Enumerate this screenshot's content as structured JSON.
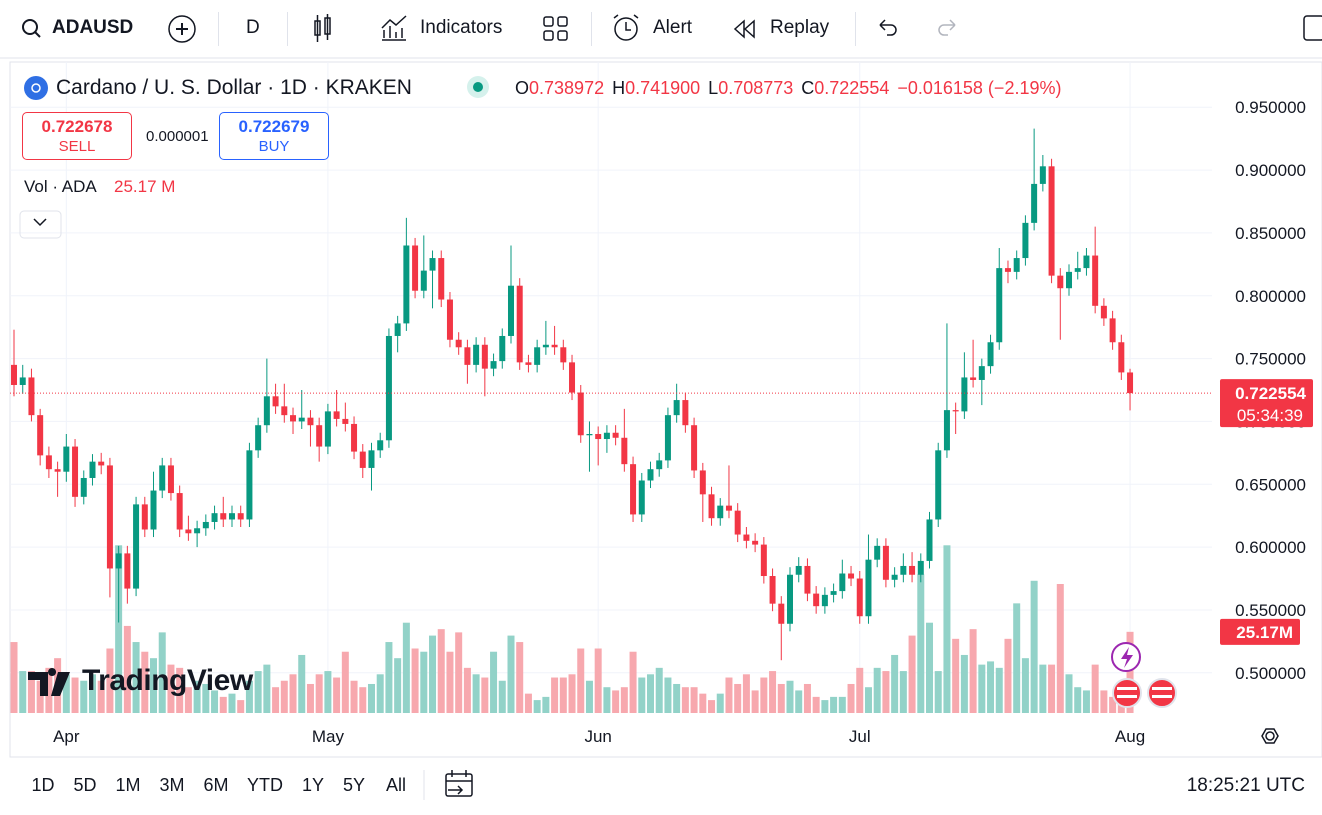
{
  "toolbar": {
    "symbol": "ADAUSD",
    "interval": "D",
    "indicators": "Indicators",
    "alert": "Alert",
    "replay": "Replay"
  },
  "legend": {
    "title": "Cardano / U. S. Dollar · 1D · KRAKEN",
    "ohlc": [
      {
        "key": "O",
        "value": "0.738972"
      },
      {
        "key": "H",
        "value": "0.741900"
      },
      {
        "key": "L",
        "value": "0.708773"
      },
      {
        "key": "C",
        "value": "0.722554"
      }
    ],
    "change": "−0.016158 (−2.19%)",
    "sell": {
      "price": "0.722678",
      "label": "SELL"
    },
    "spread": "0.000001",
    "buy": {
      "price": "0.722679",
      "label": "BUY"
    },
    "volume_name": "Vol · ADA",
    "volume_value": "25.17 M"
  },
  "chart_data": {
    "type": "candlestick",
    "up_color": "#089981",
    "down_color": "#f23645",
    "volume_up_color": "#92d2c8",
    "volume_down_color": "#f7a8ae",
    "grid": true,
    "open": [
      0.745,
      0.729,
      0.735,
      0.705,
      0.673,
      0.662,
      0.66,
      0.68,
      0.64,
      0.655,
      0.668,
      0.665,
      0.583,
      0.595,
      0.567,
      0.634,
      0.614,
      0.645,
      0.665,
      0.643,
      0.614,
      0.611,
      0.615,
      0.62,
      0.627,
      0.622,
      0.627,
      0.622,
      0.677,
      0.697,
      0.72,
      0.712,
      0.705,
      0.7,
      0.703,
      0.697,
      0.68,
      0.708,
      0.702,
      0.698,
      0.676,
      0.663,
      0.677,
      0.685,
      0.768,
      0.778,
      0.84,
      0.804,
      0.82,
      0.83,
      0.797,
      0.765,
      0.759,
      0.745,
      0.761,
      0.742,
      0.748,
      0.768,
      0.808,
      0.747,
      0.745,
      0.759,
      0.761,
      0.759,
      0.747,
      0.723,
      0.689,
      0.69,
      0.686,
      0.691,
      0.687,
      0.666,
      0.626,
      0.653,
      0.662,
      0.669,
      0.705,
      0.717,
      0.697,
      0.661,
      0.642,
      0.623,
      0.633,
      0.629,
      0.61,
      0.605,
      0.602,
      0.577,
      0.555,
      0.539,
      0.578,
      0.585,
      0.563,
      0.553,
      0.562,
      0.565,
      0.579,
      0.575,
      0.545,
      0.59,
      0.601,
      0.574,
      0.578,
      0.585,
      0.578,
      0.589,
      0.622,
      0.677,
      0.709,
      0.708,
      0.735,
      0.733,
      0.744,
      0.763,
      0.822,
      0.819,
      0.83,
      0.858,
      0.889,
      0.903,
      0.816,
      0.806,
      0.819,
      0.822,
      0.832,
      0.792,
      0.782,
      0.763,
      0.738972
    ],
    "high": [
      0.773,
      0.745,
      0.742,
      0.71,
      0.68,
      0.668,
      0.69,
      0.686,
      0.661,
      0.674,
      0.675,
      0.671,
      0.601,
      0.601,
      0.64,
      0.64,
      0.66,
      0.671,
      0.671,
      0.649,
      0.625,
      0.621,
      0.626,
      0.633,
      0.64,
      0.633,
      0.633,
      0.683,
      0.703,
      0.75,
      0.73,
      0.73,
      0.711,
      0.725,
      0.709,
      0.703,
      0.714,
      0.725,
      0.715,
      0.704,
      0.682,
      0.683,
      0.691,
      0.774,
      0.784,
      0.862,
      0.846,
      0.848,
      0.836,
      0.836,
      0.803,
      0.771,
      0.765,
      0.767,
      0.767,
      0.754,
      0.774,
      0.84,
      0.814,
      0.753,
      0.765,
      0.78,
      0.776,
      0.765,
      0.753,
      0.729,
      0.7,
      0.696,
      0.697,
      0.697,
      0.71,
      0.672,
      0.659,
      0.668,
      0.675,
      0.711,
      0.73,
      0.723,
      0.703,
      0.667,
      0.648,
      0.639,
      0.665,
      0.635,
      0.616,
      0.611,
      0.608,
      0.583,
      0.561,
      0.584,
      0.592,
      0.591,
      0.569,
      0.568,
      0.571,
      0.59,
      0.585,
      0.581,
      0.61,
      0.607,
      0.607,
      0.584,
      0.595,
      0.596,
      0.595,
      0.628,
      0.683,
      0.778,
      0.715,
      0.755,
      0.765,
      0.75,
      0.769,
      0.838,
      0.828,
      0.836,
      0.864,
      0.933,
      0.912,
      0.909,
      0.822,
      0.825,
      0.835,
      0.838,
      0.855,
      0.798,
      0.788,
      0.769,
      0.7419
    ],
    "low": [
      0.72,
      0.722,
      0.7,
      0.665,
      0.655,
      0.64,
      0.652,
      0.632,
      0.634,
      0.649,
      0.658,
      0.56,
      0.54,
      0.555,
      0.561,
      0.608,
      0.608,
      0.639,
      0.637,
      0.608,
      0.605,
      0.6,
      0.609,
      0.614,
      0.616,
      0.616,
      0.616,
      0.616,
      0.671,
      0.691,
      0.706,
      0.699,
      0.69,
      0.694,
      0.68,
      0.668,
      0.674,
      0.696,
      0.692,
      0.67,
      0.655,
      0.645,
      0.671,
      0.679,
      0.755,
      0.772,
      0.798,
      0.798,
      0.79,
      0.791,
      0.759,
      0.753,
      0.73,
      0.739,
      0.72,
      0.736,
      0.742,
      0.762,
      0.741,
      0.739,
      0.739,
      0.753,
      0.753,
      0.741,
      0.717,
      0.683,
      0.66,
      0.665,
      0.675,
      0.681,
      0.66,
      0.62,
      0.62,
      0.647,
      0.656,
      0.663,
      0.699,
      0.691,
      0.655,
      0.62,
      0.617,
      0.617,
      0.623,
      0.604,
      0.599,
      0.596,
      0.571,
      0.549,
      0.51,
      0.533,
      0.572,
      0.557,
      0.547,
      0.547,
      0.556,
      0.559,
      0.569,
      0.539,
      0.539,
      0.584,
      0.568,
      0.568,
      0.572,
      0.572,
      0.572,
      0.583,
      0.616,
      0.671,
      0.69,
      0.702,
      0.727,
      0.713,
      0.738,
      0.757,
      0.81,
      0.813,
      0.824,
      0.852,
      0.883,
      0.81,
      0.765,
      0.8,
      0.813,
      0.816,
      0.786,
      0.776,
      0.757,
      0.733,
      0.708773
    ],
    "close": [
      0.729,
      0.735,
      0.705,
      0.673,
      0.662,
      0.66,
      0.68,
      0.64,
      0.655,
      0.668,
      0.665,
      0.583,
      0.595,
      0.567,
      0.634,
      0.614,
      0.645,
      0.665,
      0.643,
      0.614,
      0.611,
      0.615,
      0.62,
      0.627,
      0.622,
      0.627,
      0.622,
      0.677,
      0.697,
      0.72,
      0.712,
      0.705,
      0.7,
      0.703,
      0.697,
      0.68,
      0.708,
      0.702,
      0.698,
      0.676,
      0.663,
      0.677,
      0.685,
      0.768,
      0.778,
      0.84,
      0.804,
      0.82,
      0.83,
      0.797,
      0.765,
      0.759,
      0.745,
      0.761,
      0.742,
      0.748,
      0.768,
      0.808,
      0.747,
      0.745,
      0.759,
      0.761,
      0.759,
      0.747,
      0.723,
      0.689,
      0.69,
      0.686,
      0.691,
      0.687,
      0.666,
      0.626,
      0.653,
      0.662,
      0.669,
      0.705,
      0.717,
      0.697,
      0.661,
      0.642,
      0.623,
      0.633,
      0.629,
      0.61,
      0.605,
      0.602,
      0.577,
      0.555,
      0.539,
      0.578,
      0.585,
      0.563,
      0.553,
      0.562,
      0.565,
      0.579,
      0.575,
      0.545,
      0.59,
      0.601,
      0.574,
      0.578,
      0.585,
      0.578,
      0.589,
      0.622,
      0.677,
      0.709,
      0.708,
      0.735,
      0.733,
      0.744,
      0.763,
      0.822,
      0.819,
      0.83,
      0.858,
      0.889,
      0.903,
      0.816,
      0.806,
      0.819,
      0.822,
      0.832,
      0.792,
      0.782,
      0.763,
      0.739,
      0.722554
    ],
    "volume": [
      22,
      13,
      13,
      10,
      14,
      17,
      12,
      11,
      10,
      12,
      10,
      20,
      52,
      27,
      22,
      19,
      17,
      25,
      15,
      14,
      8,
      10,
      9,
      7,
      5,
      6,
      4,
      10,
      13,
      15,
      8,
      10,
      12,
      18,
      9,
      12,
      13,
      11,
      19,
      10,
      8,
      9,
      12,
      22,
      17,
      28,
      20,
      19,
      24,
      26,
      19,
      25,
      14,
      12,
      11,
      19,
      10,
      24,
      22,
      6,
      4,
      5,
      11,
      11,
      12,
      20,
      10,
      20,
      8,
      7,
      8,
      19,
      11,
      12,
      14,
      11,
      9,
      8,
      8,
      6,
      4,
      6,
      11,
      9,
      12,
      7,
      11,
      13,
      9,
      10,
      7,
      9,
      5,
      4,
      5,
      5,
      9,
      14,
      8,
      14,
      13,
      18,
      13,
      24,
      43,
      28,
      13,
      52,
      23,
      18,
      26,
      15,
      16,
      14,
      23,
      34,
      17,
      41,
      15,
      15,
      40,
      12,
      8,
      7,
      15,
      7,
      5,
      8,
      25.17
    ],
    "volume_label": "25.17M",
    "countdown": "05:34:39",
    "xlim": [
      -0.46,
      137.4
    ],
    "ylim": [
      0.468,
      0.986
    ],
    "volume_lim": [
      0,
      80
    ],
    "xticks": [
      {
        "value": 6,
        "label": "Apr"
      },
      {
        "value": 36,
        "label": "May"
      },
      {
        "value": 67,
        "label": "Jun"
      },
      {
        "value": 97,
        "label": "Jul"
      },
      {
        "value": 128,
        "label": "Aug"
      }
    ],
    "yticks": [
      {
        "value": 0.95,
        "label": "0.950000"
      },
      {
        "value": 0.9,
        "label": "0.900000"
      },
      {
        "value": 0.85,
        "label": "0.850000"
      },
      {
        "value": 0.8,
        "label": "0.800000"
      },
      {
        "value": 0.75,
        "label": "0.750000"
      },
      {
        "value": 0.7,
        "label": "0.700000"
      },
      {
        "value": 0.65,
        "label": "0.650000"
      },
      {
        "value": 0.6,
        "label": "0.600000"
      },
      {
        "value": 0.55,
        "label": "0.550000"
      },
      {
        "value": 0.5,
        "label": "0.500000"
      }
    ]
  },
  "brand": "TradingView",
  "ranges": [
    "1D",
    "5D",
    "1M",
    "3M",
    "6M",
    "YTD",
    "1Y",
    "5Y",
    "All"
  ],
  "clock": "18:25:21 UTC"
}
